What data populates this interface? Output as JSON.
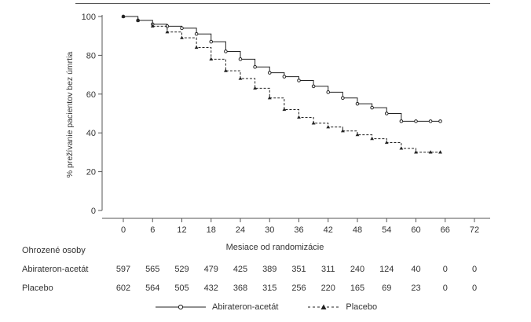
{
  "chart_data": {
    "type": "line",
    "ylabel": "% prežívanie pacientov bez úmrtia",
    "xlabel": "Mesiace od randomizácie",
    "xlim": [
      0,
      72
    ],
    "ylim": [
      0,
      100
    ],
    "x_ticks": [
      "0",
      "6",
      "12",
      "18",
      "24",
      "30",
      "36",
      "42",
      "48",
      "54",
      "60",
      "66",
      "72"
    ],
    "y_ticks": [
      "0",
      "20",
      "40",
      "60",
      "80",
      "100"
    ],
    "grid": false,
    "series": [
      {
        "name": "Abirateron-acetát",
        "marker": "circle",
        "style": "solid",
        "x": [
          0,
          3,
          6,
          9,
          12,
          15,
          18,
          21,
          24,
          27,
          30,
          33,
          36,
          39,
          42,
          45,
          48,
          51,
          54,
          57,
          60,
          63,
          65
        ],
        "y": [
          100,
          98,
          96,
          95,
          94,
          91,
          87,
          82,
          78,
          74,
          71,
          69,
          67,
          64,
          61,
          58,
          55,
          53,
          50,
          46,
          46,
          46,
          46
        ]
      },
      {
        "name": "Placebo",
        "marker": "triangle",
        "style": "dashed",
        "x": [
          0,
          3,
          6,
          9,
          12,
          15,
          18,
          21,
          24,
          27,
          30,
          33,
          36,
          39,
          42,
          45,
          48,
          51,
          54,
          57,
          60,
          63,
          65
        ],
        "y": [
          100,
          98,
          95,
          92,
          89,
          84,
          78,
          72,
          68,
          63,
          58,
          52,
          48,
          45,
          43,
          41,
          39,
          37,
          35,
          32,
          30,
          30,
          30
        ]
      }
    ]
  },
  "risk_table": {
    "title": "Ohrozené osoby",
    "rows": [
      {
        "label": "Abirateron-acetát",
        "values": [
          "597",
          "565",
          "529",
          "479",
          "425",
          "389",
          "351",
          "311",
          "240",
          "124",
          "40",
          "0",
          "0"
        ]
      },
      {
        "label": "Placebo",
        "values": [
          "602",
          "564",
          "505",
          "432",
          "368",
          "315",
          "256",
          "220",
          "165",
          "69",
          "23",
          "0",
          "0"
        ]
      }
    ]
  },
  "legend": {
    "items": [
      {
        "label": "Abirateron-acetát",
        "marker": "circle",
        "style": "solid"
      },
      {
        "label": "Placebo",
        "marker": "triangle",
        "style": "dashed"
      }
    ]
  },
  "colors": {
    "line": "#222222",
    "axis": "#555555"
  }
}
